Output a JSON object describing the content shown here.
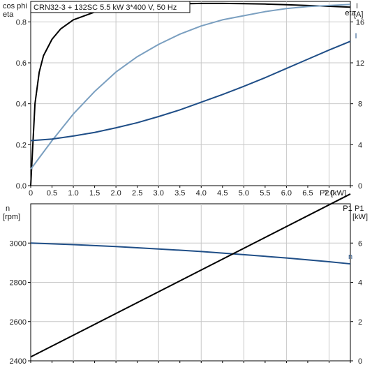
{
  "chart_data": [
    {
      "type": "line",
      "title": "CRN32-3 + 132SC   5.5 kW   3*400 V, 50 Hz",
      "xlabel": "P2 [kW]",
      "x_ticks": [
        0.0,
        0.5,
        1.0,
        1.5,
        2.0,
        2.5,
        3.0,
        3.5,
        4.0,
        4.5,
        5.0,
        5.5,
        6.0,
        6.5,
        7.0
      ],
      "x_tick_labels": [
        "0",
        "0.5",
        "1.0",
        "1.5",
        "2.0",
        "2.5",
        "3.0",
        "3.5",
        "4.0",
        "4.5",
        "5.0",
        "5.5",
        "6.0",
        "6.5",
        "7.0"
      ],
      "x_end_label": "P2",
      "x_unit": "[kW]",
      "xlim": [
        0,
        7.5
      ],
      "left_axis": {
        "label_line1": "cos phi",
        "label_line2": "eta",
        "ylim": [
          0,
          0.9
        ],
        "ticks": [
          0.0,
          0.2,
          0.4,
          0.6,
          0.8
        ],
        "tick_labels": [
          "0.0",
          "0.2",
          "0.4",
          "0.6",
          "0.8"
        ]
      },
      "right_axis": {
        "label_line1": "I",
        "label_line2": "[A]",
        "ylim": [
          0,
          18
        ],
        "ticks": [
          0,
          4,
          8,
          12,
          16
        ],
        "tick_labels": [
          "0",
          "4",
          "8",
          "12",
          "16"
        ]
      },
      "grid": true,
      "series": [
        {
          "name": "eta",
          "axis": "left",
          "color": "#000000",
          "x": [
            0.0,
            0.1,
            0.2,
            0.3,
            0.5,
            0.7,
            1.0,
            1.5,
            2.0,
            2.5,
            3.0,
            3.5,
            4.0,
            4.5,
            5.0,
            5.5,
            6.0,
            6.5,
            7.0,
            7.5
          ],
          "y": [
            0.0,
            0.4,
            0.555,
            0.635,
            0.715,
            0.765,
            0.81,
            0.848,
            0.868,
            0.879,
            0.885,
            0.888,
            0.89,
            0.89,
            0.889,
            0.887,
            0.884,
            0.88,
            0.876,
            0.872
          ]
        },
        {
          "name": "cos phi",
          "axis": "left",
          "color": "#7a9fc0",
          "x": [
            0.0,
            0.5,
            1.0,
            1.5,
            2.0,
            2.5,
            3.0,
            3.5,
            4.0,
            4.5,
            5.0,
            5.5,
            6.0,
            6.5,
            7.0,
            7.5
          ],
          "y": [
            0.08,
            0.22,
            0.35,
            0.46,
            0.555,
            0.63,
            0.69,
            0.74,
            0.78,
            0.81,
            0.83,
            0.85,
            0.865,
            0.875,
            0.88,
            0.885
          ]
        },
        {
          "name": "I",
          "axis": "right",
          "color": "#1f4e87",
          "x": [
            0.0,
            0.5,
            1.0,
            1.5,
            2.0,
            2.5,
            3.0,
            3.5,
            4.0,
            4.5,
            5.0,
            5.5,
            6.0,
            6.5,
            7.0,
            7.5
          ],
          "y": [
            4.4,
            4.55,
            4.85,
            5.2,
            5.65,
            6.15,
            6.75,
            7.4,
            8.15,
            8.9,
            9.7,
            10.55,
            11.45,
            12.35,
            13.25,
            14.1
          ]
        }
      ]
    },
    {
      "type": "line",
      "xlim": [
        0,
        7.5
      ],
      "left_axis": {
        "label_line1": "n",
        "label_line2": "[rpm]",
        "ylim": [
          2400,
          3200
        ],
        "ticks": [
          2400,
          2600,
          2800,
          3000
        ],
        "tick_labels": [
          "2400",
          "2600",
          "2800",
          "3000"
        ]
      },
      "right_axis": {
        "label_line1": "P1",
        "label_line2": "[kW]",
        "ylim": [
          0,
          8
        ],
        "ticks": [
          0,
          2,
          4,
          6
        ],
        "tick_labels": [
          "0",
          "2",
          "4",
          "6"
        ]
      },
      "grid": true,
      "series": [
        {
          "name": "n",
          "axis": "left",
          "color": "#1f4e87",
          "x": [
            0.0,
            1.0,
            2.0,
            3.0,
            4.0,
            5.0,
            6.0,
            7.0,
            7.5
          ],
          "y": [
            3000,
            2992,
            2982,
            2970,
            2957,
            2941,
            2924,
            2905,
            2894
          ]
        },
        {
          "name": "P1",
          "axis": "right",
          "color": "#000000",
          "x": [
            0.0,
            7.5
          ],
          "y": [
            0.2,
            8.5
          ]
        }
      ]
    }
  ],
  "colors": {
    "grid": "#c8c8c8",
    "frame": "#000000"
  }
}
